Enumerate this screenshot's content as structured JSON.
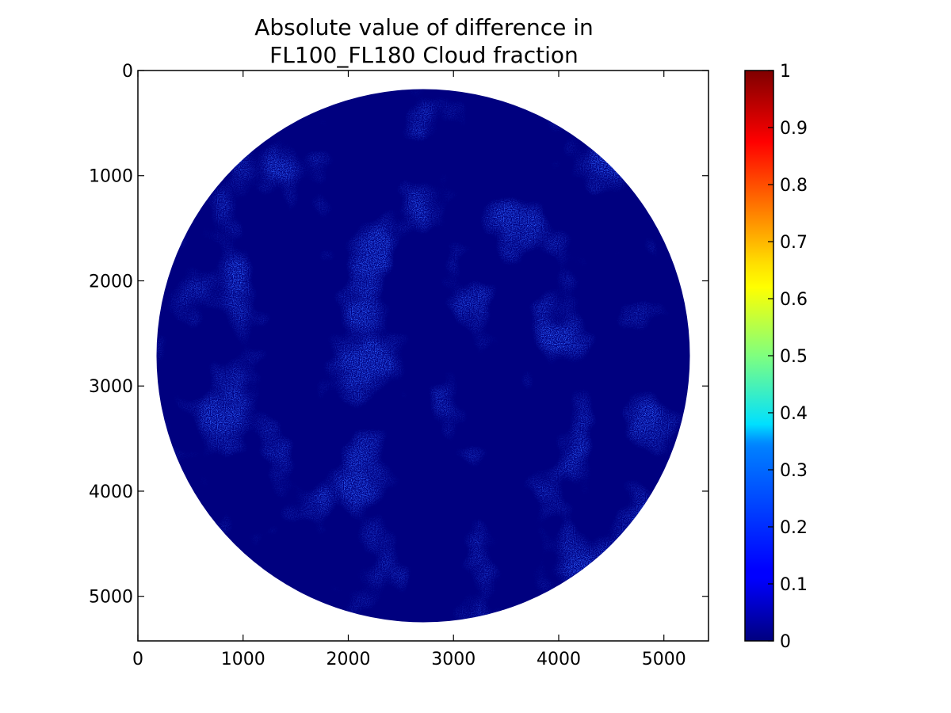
{
  "chart_data": {
    "type": "heatmap",
    "title": "Absolute value of difference in\nFL100_FL180 Cloud fraction",
    "title_lines": [
      "Absolute value of difference in",
      "FL100_FL180 Cloud fraction"
    ],
    "xlabel": "",
    "ylabel": "",
    "xlim": [
      0,
      5424
    ],
    "ylim": [
      5424,
      0
    ],
    "x_ticks": [
      0,
      1000,
      2000,
      3000,
      4000,
      5000
    ],
    "y_ticks": [
      0,
      1000,
      2000,
      3000,
      4000,
      5000
    ],
    "disk": {
      "center": [
        2712,
        2712
      ],
      "radius": 2535
    },
    "colorbar": {
      "min": 0,
      "max": 1,
      "colormap": "jet",
      "ticks": [
        0,
        0.1,
        0.2,
        0.3,
        0.4,
        0.5,
        0.6,
        0.7,
        0.8,
        0.9,
        1
      ],
      "tick_labels": [
        "0",
        "0.1",
        "0.2",
        "0.3",
        "0.4",
        "0.5",
        "0.6",
        "0.7",
        "0.8",
        "0.9",
        "1"
      ]
    },
    "grid": false
  },
  "colors": {
    "background_value": "#00007f",
    "low_value": "#0000cc",
    "speckle_value": "#2a5cff"
  }
}
